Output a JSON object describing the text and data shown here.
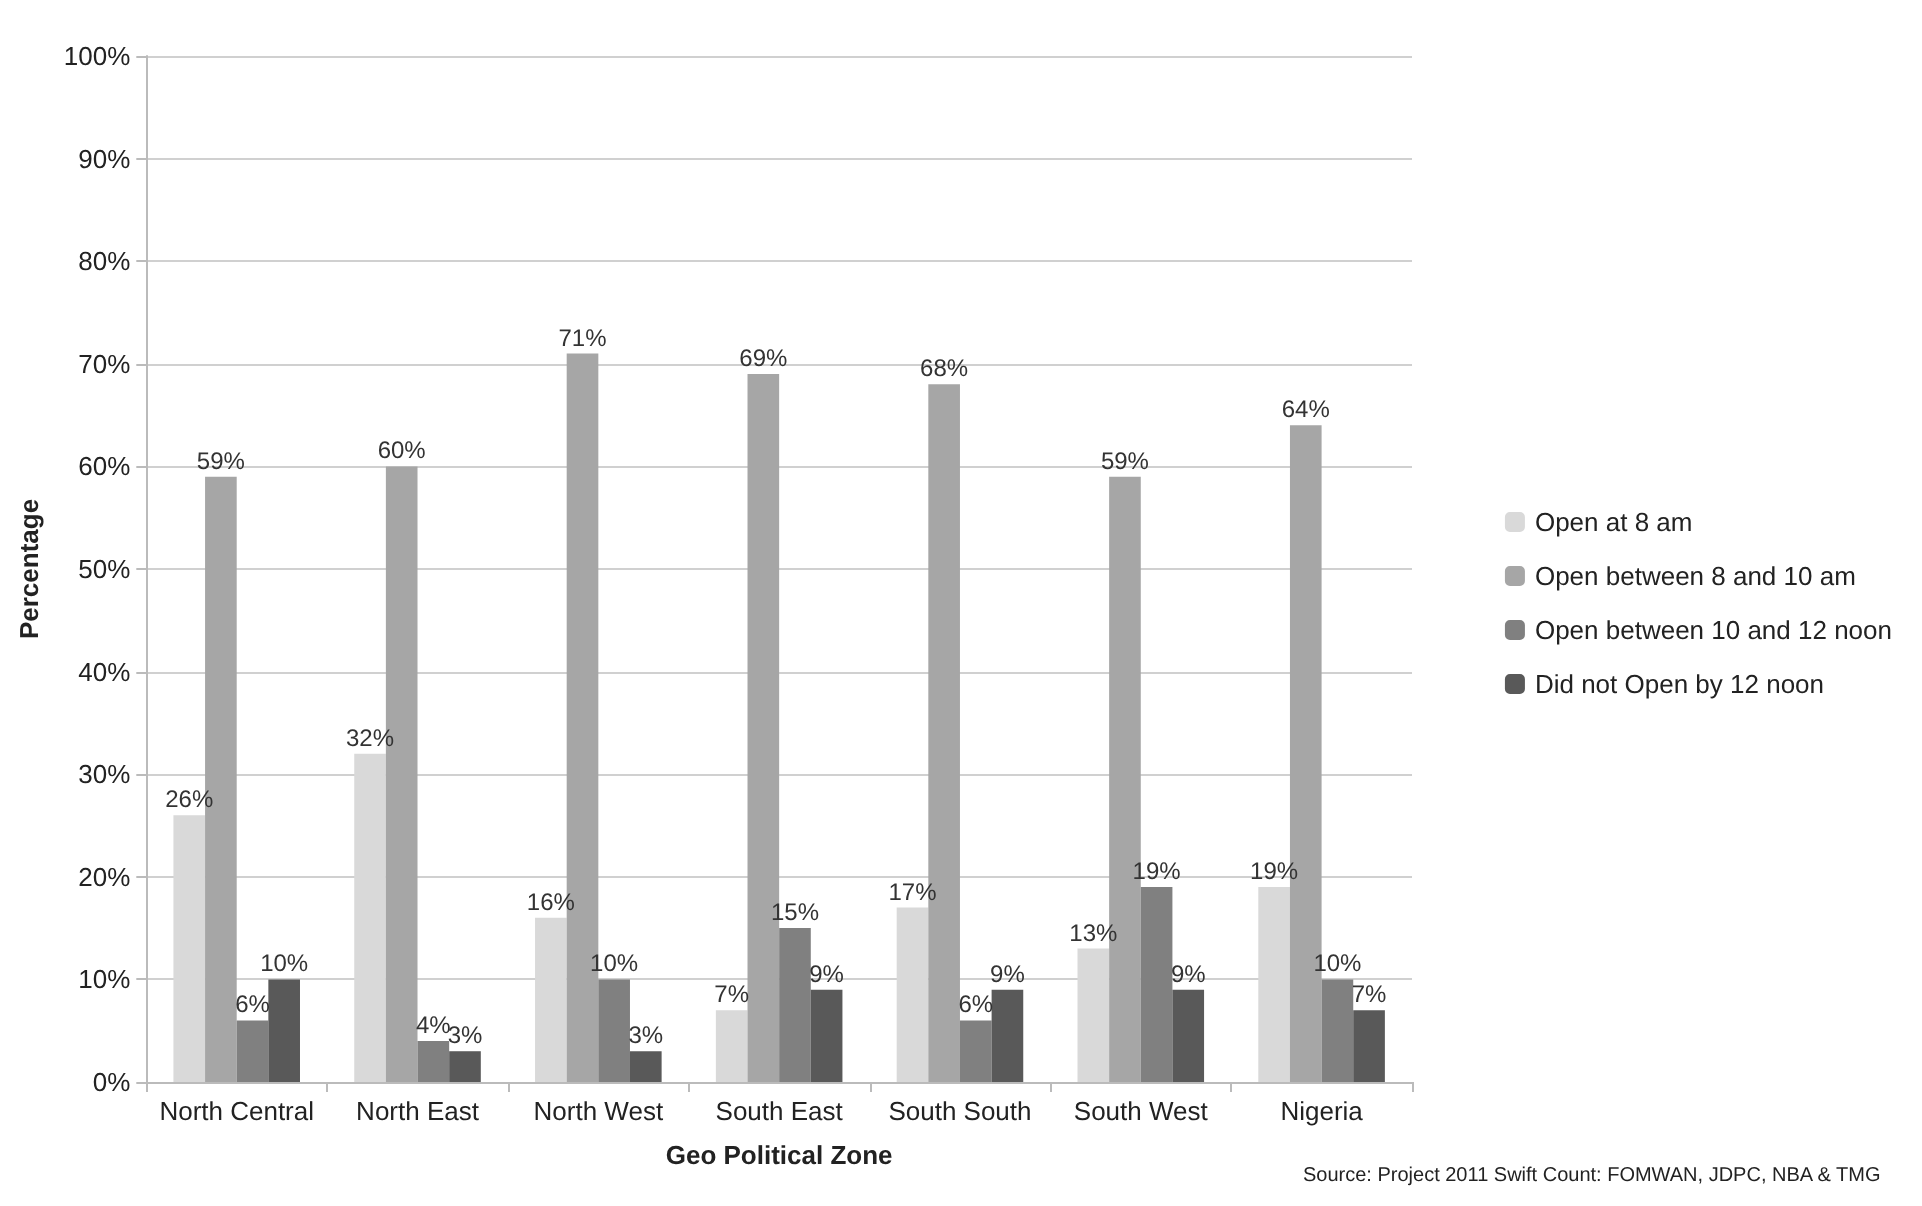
{
  "chart_data": {
    "type": "bar",
    "xlabel": "Geo Political Zone",
    "ylabel": "Percentage",
    "categories": [
      "North Central",
      "North East",
      "North West",
      "South East",
      "South South",
      "South West",
      "Nigeria"
    ],
    "series": [
      {
        "name": "Open at 8 am",
        "color": "#d9d9d9",
        "values": [
          26,
          32,
          16,
          7,
          17,
          13,
          19
        ],
        "value_labels": [
          "26%",
          "32%",
          "16%",
          "7%",
          "17%",
          "13%",
          "19%"
        ]
      },
      {
        "name": "Open between 8 and 10 am",
        "color": "#a6a6a6",
        "values": [
          59,
          60,
          71,
          69,
          68,
          59,
          64
        ],
        "value_labels": [
          "59%",
          "60%",
          "71%",
          "69%",
          "68%",
          "59%",
          "64%"
        ]
      },
      {
        "name": "Open between 10 and 12 noon",
        "color": "#808080",
        "values": [
          6,
          4,
          10,
          15,
          6,
          19,
          10
        ],
        "value_labels": [
          "6%",
          "4%",
          "10%",
          "15%",
          "6%",
          "19%",
          "10%"
        ]
      },
      {
        "name": "Did not Open by 12 noon",
        "color": "#595959",
        "values": [
          10,
          3,
          3,
          9,
          9,
          9,
          7
        ],
        "value_labels": [
          "10%",
          "3%",
          "3%",
          "9%",
          "9%",
          "9%",
          "7%"
        ]
      }
    ],
    "ylim": [
      0,
      100
    ],
    "yticks": [
      {
        "value": 0,
        "label": "0%"
      },
      {
        "value": 10,
        "label": "10%"
      },
      {
        "value": 20,
        "label": "20%"
      },
      {
        "value": 30,
        "label": "30%"
      },
      {
        "value": 40,
        "label": "40%"
      },
      {
        "value": 50,
        "label": "50%"
      },
      {
        "value": 60,
        "label": "60%"
      },
      {
        "value": 70,
        "label": "70%"
      },
      {
        "value": 80,
        "label": "80%"
      },
      {
        "value": 90,
        "label": "90%"
      },
      {
        "value": 100,
        "label": "100%"
      }
    ],
    "grid": "y",
    "legend": "right",
    "annotations": [
      "Source: Project 2011 Swift Count: FOMWAN, JDPC, NBA & TMG"
    ]
  }
}
